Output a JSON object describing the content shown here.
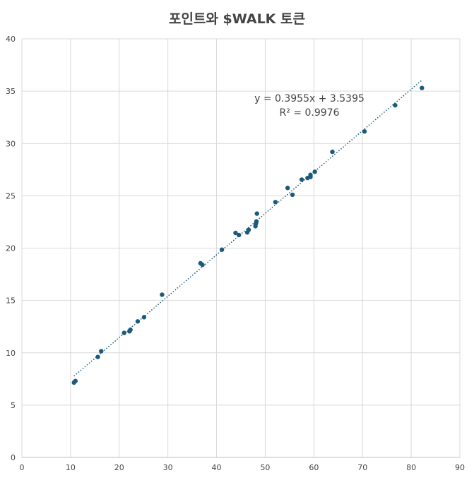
{
  "chart_data": {
    "type": "scatter",
    "title": "포인트와 $WALK 토큰",
    "xlabel": "",
    "ylabel": "",
    "xlim": [
      0,
      90
    ],
    "ylim": [
      0,
      40
    ],
    "x_ticks": [
      0,
      10,
      20,
      30,
      40,
      50,
      60,
      70,
      80,
      90
    ],
    "y_ticks": [
      0,
      5,
      10,
      15,
      20,
      25,
      30,
      35,
      40
    ],
    "grid": true,
    "colors": {
      "points": "#1b5a7a",
      "trendline": "#1b5a7a",
      "grid": "#d9d9d9",
      "text": "#444444"
    },
    "points": [
      {
        "x": 10.7,
        "y": 7.15
      },
      {
        "x": 11.0,
        "y": 7.3
      },
      {
        "x": 15.6,
        "y": 9.6
      },
      {
        "x": 16.3,
        "y": 10.15
      },
      {
        "x": 21.0,
        "y": 11.9
      },
      {
        "x": 22.1,
        "y": 12.05
      },
      {
        "x": 22.3,
        "y": 12.2
      },
      {
        "x": 23.8,
        "y": 13.0
      },
      {
        "x": 25.1,
        "y": 13.4
      },
      {
        "x": 28.8,
        "y": 15.55
      },
      {
        "x": 36.7,
        "y": 18.55
      },
      {
        "x": 37.1,
        "y": 18.4
      },
      {
        "x": 41.1,
        "y": 19.85
      },
      {
        "x": 43.9,
        "y": 21.45
      },
      {
        "x": 44.6,
        "y": 21.25
      },
      {
        "x": 46.3,
        "y": 21.5
      },
      {
        "x": 46.6,
        "y": 21.75
      },
      {
        "x": 48.0,
        "y": 22.1
      },
      {
        "x": 48.1,
        "y": 22.35
      },
      {
        "x": 48.2,
        "y": 22.55
      },
      {
        "x": 48.3,
        "y": 23.3
      },
      {
        "x": 52.1,
        "y": 24.4
      },
      {
        "x": 54.6,
        "y": 25.75
      },
      {
        "x": 55.6,
        "y": 25.1
      },
      {
        "x": 57.5,
        "y": 26.55
      },
      {
        "x": 58.7,
        "y": 26.7
      },
      {
        "x": 59.3,
        "y": 26.8
      },
      {
        "x": 59.3,
        "y": 27.0
      },
      {
        "x": 60.2,
        "y": 27.3
      },
      {
        "x": 63.8,
        "y": 29.2
      },
      {
        "x": 70.4,
        "y": 31.15
      },
      {
        "x": 76.7,
        "y": 33.65
      },
      {
        "x": 82.2,
        "y": 35.3
      }
    ],
    "trendline": {
      "type": "linear",
      "slope": 0.3955,
      "intercept": 3.5395,
      "x_range": [
        10.7,
        82.2
      ],
      "equation_text": "y = 0.3955x + 3.5395",
      "r2_text": "R² = 0.9976"
    }
  }
}
